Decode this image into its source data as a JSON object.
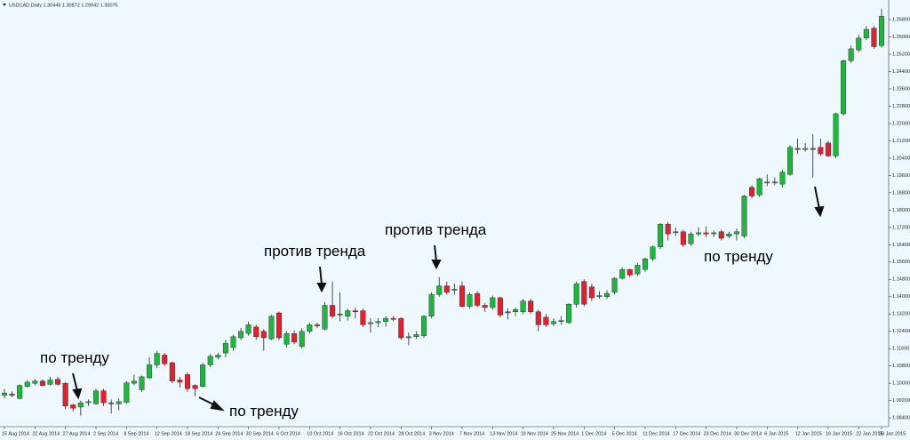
{
  "chart_data": {
    "type": "candlestick",
    "title": "USDCAD,Daily  1.30449 1.30872 1.29942 1.30075",
    "categories": [
      "15 Aug 2014",
      null,
      null,
      null,
      "22 Aug 2014",
      null,
      null,
      null,
      "27 Aug 2014",
      null,
      null,
      null,
      "2 Sep 2014",
      null,
      null,
      null,
      "8 Sep 2014",
      null,
      null,
      null,
      "12 Sep 2014",
      null,
      null,
      null,
      "18 Sep 2014",
      null,
      null,
      null,
      "24 Sep 2014",
      null,
      null,
      null,
      "30 Sep 2014",
      null,
      null,
      null,
      "6 Oct 2014",
      null,
      null,
      null,
      "10 Oct 2014",
      null,
      null,
      null,
      "16 Oct 2014",
      null,
      null,
      null,
      "22 Oct 2014",
      null,
      null,
      null,
      "28 Oct 2014",
      null,
      null,
      null,
      "3 Nov 2014",
      null,
      null,
      null,
      "7 Nov 2014",
      null,
      null,
      null,
      "13 Nov 2014",
      null,
      null,
      null,
      "19 Nov 2014",
      null,
      null,
      null,
      "25 Nov 2014",
      null,
      null,
      null,
      "1 Dec 2014",
      null,
      null,
      null,
      "5 Dec 2014",
      null,
      null,
      null,
      "11 Dec 2014",
      null,
      null,
      null,
      "17 Dec 2014",
      null,
      null,
      null,
      "23 Dec 2014",
      null,
      null,
      null,
      "30 Dec 2014",
      null,
      null,
      null,
      "6 Jan 2015",
      null,
      null,
      null,
      "12 Jan 2015",
      null,
      null,
      null,
      "16 Jan 2015",
      null,
      null,
      null,
      "22 Jan 2015",
      null,
      null,
      "28 Jan 2015"
    ],
    "open": [
      1.0945,
      1.095,
      1.093,
      1.0985,
      1.1,
      1.101,
      1.0995,
      1.1018,
      1.1,
      1.09,
      1.089,
      1.091,
      1.0905,
      1.0965,
      1.091,
      1.0905,
      1.0912,
      1.1,
      1.097,
      1.1025,
      1.1085,
      1.113,
      1.1095,
      1.1015,
      1.104,
      1.099,
      1.0985,
      1.1085,
      1.112,
      1.114,
      1.1165,
      1.121,
      1.123,
      1.126,
      1.124,
      1.1205,
      1.1325,
      1.118,
      1.123,
      1.117,
      1.124,
      1.127,
      1.125,
      1.136,
      1.1315,
      1.131,
      1.1335,
      1.1335,
      1.1275,
      1.128,
      1.1285,
      1.13,
      1.13,
      1.121,
      1.1215,
      1.122,
      1.131,
      1.141,
      1.145,
      1.143,
      1.145,
      1.1355,
      1.1415,
      1.136,
      1.135,
      1.1395,
      1.133,
      1.133,
      1.133,
      1.138,
      1.133,
      1.1305,
      1.1275,
      1.1285,
      1.128,
      1.1365,
      1.147,
      1.1445,
      1.14,
      1.14,
      1.142,
      1.1485,
      1.1525,
      1.1505,
      1.1525,
      1.1575,
      1.163,
      1.1735,
      1.1695,
      1.17,
      1.1645,
      1.169,
      1.1695,
      1.169,
      1.17,
      1.168,
      1.169,
      1.168,
      1.1905,
      1.187,
      1.1925,
      1.1925,
      1.192,
      1.1965,
      1.2085,
      1.208,
      1.2085,
      1.209,
      1.211,
      1.205,
      1.2245,
      1.249,
      1.254,
      1.2595,
      1.264,
      1.256
    ],
    "high": [
      1.0975,
      1.0962,
      1.0995,
      1.1015,
      1.102,
      1.1018,
      1.103,
      1.103,
      1.1005,
      1.0905,
      1.092,
      1.0925,
      1.0975,
      1.0975,
      1.0925,
      1.093,
      1.101,
      1.104,
      1.1035,
      1.112,
      1.115,
      1.114,
      1.11,
      1.103,
      1.105,
      1.0995,
      1.1095,
      1.1135,
      1.114,
      1.12,
      1.1225,
      1.1255,
      1.1285,
      1.127,
      1.125,
      1.1315,
      1.133,
      1.124,
      1.1245,
      1.1255,
      1.128,
      1.128,
      1.1375,
      1.147,
      1.142,
      1.1345,
      1.135,
      1.1345,
      1.13,
      1.13,
      1.131,
      1.131,
      1.1305,
      1.1235,
      1.124,
      1.1315,
      1.142,
      1.149,
      1.147,
      1.146,
      1.147,
      1.142,
      1.1425,
      1.137,
      1.1405,
      1.14,
      1.1345,
      1.135,
      1.139,
      1.139,
      1.134,
      1.132,
      1.13,
      1.131,
      1.137,
      1.147,
      1.148,
      1.146,
      1.1425,
      1.143,
      1.149,
      1.1535,
      1.153,
      1.1555,
      1.158,
      1.1635,
      1.174,
      1.1745,
      1.172,
      1.171,
      1.17,
      1.172,
      1.1725,
      1.1705,
      1.171,
      1.17,
      1.1715,
      1.187,
      1.1915,
      1.195,
      1.1965,
      1.195,
      1.1985,
      1.21,
      1.213,
      1.211,
      1.215,
      1.213,
      1.212,
      1.225,
      1.2495,
      1.256,
      1.261,
      1.265,
      1.265,
      1.273
    ],
    "low": [
      1.093,
      1.0935,
      1.0925,
      1.098,
      1.099,
      1.0985,
      1.099,
      1.099,
      1.088,
      1.087,
      1.085,
      1.0895,
      1.09,
      1.0895,
      1.086,
      1.0875,
      1.0905,
      1.099,
      1.096,
      1.102,
      1.107,
      1.108,
      1.1,
      1.098,
      1.096,
      1.094,
      1.098,
      1.1075,
      1.111,
      1.112,
      1.115,
      1.12,
      1.122,
      1.12,
      1.115,
      1.12,
      1.12,
      1.1165,
      1.118,
      1.116,
      1.123,
      1.1255,
      1.1245,
      1.13,
      1.1285,
      1.129,
      1.13,
      1.126,
      1.1235,
      1.126,
      1.126,
      1.1285,
      1.12,
      1.1175,
      1.1205,
      1.121,
      1.13,
      1.14,
      1.141,
      1.141,
      1.135,
      1.1345,
      1.135,
      1.133,
      1.134,
      1.1305,
      1.1295,
      1.131,
      1.132,
      1.132,
      1.124,
      1.126,
      1.1265,
      1.127,
      1.1275,
      1.135,
      1.1355,
      1.138,
      1.139,
      1.139,
      1.141,
      1.148,
      1.149,
      1.1495,
      1.1515,
      1.1565,
      1.162,
      1.166,
      1.168,
      1.163,
      1.1635,
      1.168,
      1.1675,
      1.1675,
      1.166,
      1.167,
      1.166,
      1.167,
      1.1855,
      1.186,
      1.191,
      1.1915,
      1.1905,
      1.196,
      1.206,
      1.207,
      1.195,
      1.205,
      1.2045,
      1.204,
      1.2235,
      1.248,
      1.253,
      1.2585,
      1.2545,
      1.255
    ],
    "close": [
      1.0955,
      1.0945,
      1.099,
      1.1005,
      1.101,
      1.099,
      1.1015,
      1.0995,
      1.0895,
      1.0885,
      1.091,
      1.0915,
      1.0965,
      1.091,
      1.0905,
      1.0915,
      1.1002,
      1.101,
      1.103,
      1.1085,
      1.1138,
      1.109,
      1.101,
      1.1005,
      1.0975,
      1.0975,
      1.1085,
      1.1125,
      1.113,
      1.1185,
      1.1215,
      1.124,
      1.127,
      1.1215,
      1.121,
      1.131,
      1.121,
      1.123,
      1.119,
      1.124,
      1.127,
      1.1265,
      1.136,
      1.131,
      1.132,
      1.1335,
      1.133,
      1.127,
      1.128,
      1.1285,
      1.13,
      1.1295,
      1.121,
      1.1215,
      1.1225,
      1.131,
      1.141,
      1.145,
      1.142,
      1.1435,
      1.1355,
      1.141,
      1.136,
      1.135,
      1.1395,
      1.1315,
      1.1325,
      1.134,
      1.138,
      1.133,
      1.127,
      1.127,
      1.1285,
      1.129,
      1.1365,
      1.146,
      1.1365,
      1.1395,
      1.1405,
      1.1415,
      1.1485,
      1.1525,
      1.15,
      1.1545,
      1.1575,
      1.163,
      1.1735,
      1.169,
      1.17,
      1.164,
      1.169,
      1.1695,
      1.169,
      1.1695,
      1.167,
      1.169,
      1.17,
      1.1865,
      1.1865,
      1.1945,
      1.193,
      1.193,
      1.1975,
      1.209,
      1.208,
      1.2085,
      1.208,
      1.206,
      1.205,
      1.2245,
      1.249,
      1.2545,
      1.2595,
      1.2635,
      1.2555,
      1.2695
    ],
    "up_color": "#1fb53f",
    "down_color": "#e3202b",
    "ylim": [
      1.082,
      1.275
    ],
    "yticks": [
      {
        "value": 1.084,
        "label": "1.08400"
      },
      {
        "value": 1.092,
        "label": "1.09200"
      },
      {
        "value": 1.1,
        "label": "1.10000"
      },
      {
        "value": 1.108,
        "label": "1.10800"
      },
      {
        "value": 1.116,
        "label": "1.11600"
      },
      {
        "value": 1.124,
        "label": "1.12400"
      },
      {
        "value": 1.132,
        "label": "1.13200"
      },
      {
        "value": 1.14,
        "label": "1.14000"
      },
      {
        "value": 1.148,
        "label": "1.14800"
      },
      {
        "value": 1.156,
        "label": "1.15600"
      },
      {
        "value": 1.164,
        "label": "1.16400"
      },
      {
        "value": 1.172,
        "label": "1.17200"
      },
      {
        "value": 1.18,
        "label": "1.18000"
      },
      {
        "value": 1.188,
        "label": "1.18800"
      },
      {
        "value": 1.196,
        "label": "1.19600"
      },
      {
        "value": 1.204,
        "label": "1.20400"
      },
      {
        "value": 1.212,
        "label": "1.21200"
      },
      {
        "value": 1.22,
        "label": "1.22000"
      },
      {
        "value": 1.228,
        "label": "1.22800"
      },
      {
        "value": 1.236,
        "label": "1.23600"
      },
      {
        "value": 1.244,
        "label": "1.24400"
      },
      {
        "value": 1.252,
        "label": "1.25200"
      },
      {
        "value": 1.26,
        "label": "1.26000"
      },
      {
        "value": 1.268,
        "label": "1.26800"
      }
    ],
    "annotations": [
      "по тренду",
      "по тренду",
      "против тренда",
      "против тренда",
      "по тренду"
    ]
  }
}
